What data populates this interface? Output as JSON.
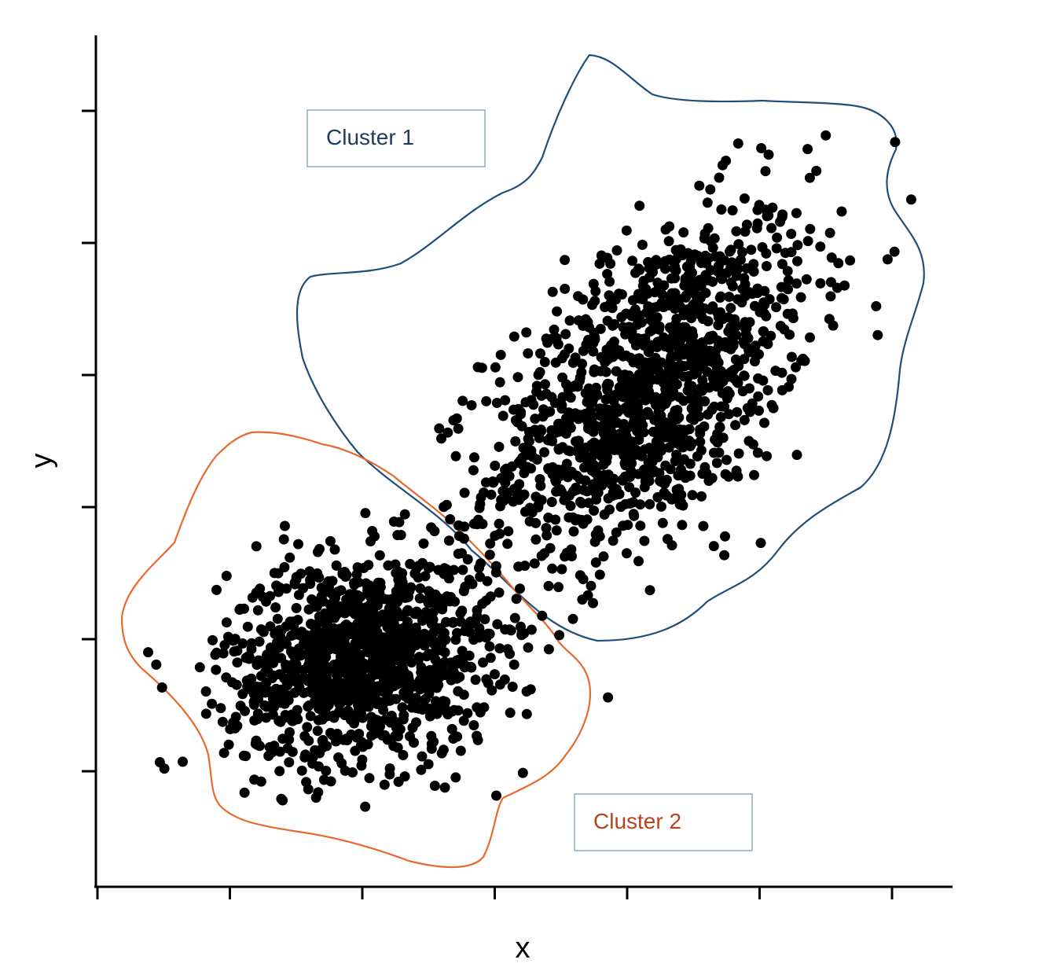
{
  "chart_data": {
    "type": "scatter",
    "xlabel": "x",
    "ylabel": "y",
    "xlim": [
      0,
      6.5
    ],
    "ylim": [
      -1,
      6.5
    ],
    "grid": false,
    "x_ticks": [
      0,
      1,
      2,
      3,
      4,
      5,
      6
    ],
    "y_ticks": [
      0,
      1,
      2,
      3,
      4,
      5,
      6
    ],
    "tick_labels_shown": false,
    "series": [
      {
        "name": "Cluster 1",
        "color": "#000000",
        "outline_color": "#1f4e79",
        "label_box": "top-left",
        "center": [
          4.2,
          3.4
        ],
        "spread": [
          0.62,
          0.78
        ],
        "correlation": 0.55,
        "n_points": 1300
      },
      {
        "name": "Cluster 2",
        "color": "#000000",
        "outline_color": "#e8692f",
        "label_box": "bottom-right",
        "center": [
          2.0,
          1.0
        ],
        "spread": [
          0.5,
          0.45
        ],
        "correlation": 0.1,
        "n_points": 1200
      }
    ]
  },
  "labels": {
    "x_axis": "x",
    "y_axis": "y",
    "cluster1": "Cluster 1",
    "cluster2": "Cluster 2"
  },
  "colors": {
    "cluster1_outline": "#1f4e79",
    "cluster2_outline": "#e8692f",
    "cluster1_text": "#1f3b63",
    "cluster2_text": "#b8431d",
    "points": "#000000",
    "axes": "#000000"
  }
}
